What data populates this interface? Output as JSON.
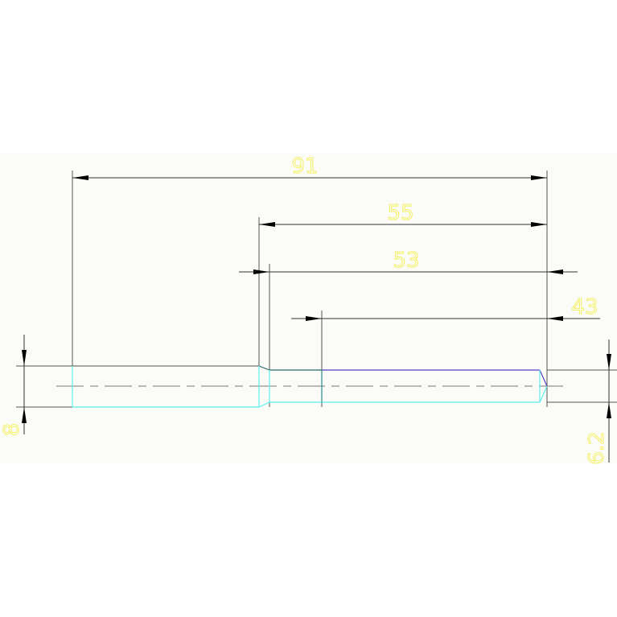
{
  "drawing": {
    "dimensions": [
      {
        "id": "overall-length",
        "label": "91"
      },
      {
        "id": "length-55",
        "label": "55"
      },
      {
        "id": "length-53",
        "label": "53"
      },
      {
        "id": "length-43",
        "label": "43"
      },
      {
        "id": "diameter-left",
        "label": "8"
      },
      {
        "id": "diameter-right",
        "label": "6.2"
      }
    ],
    "colors": {
      "background": "#fbfcf8",
      "dimension_line": "#555555",
      "dimension_text": "#f4f060",
      "outline_cyan": "#5ef0f0",
      "outline_teal": "#2a6a6a",
      "outline_purple": "#5540c8"
    }
  }
}
